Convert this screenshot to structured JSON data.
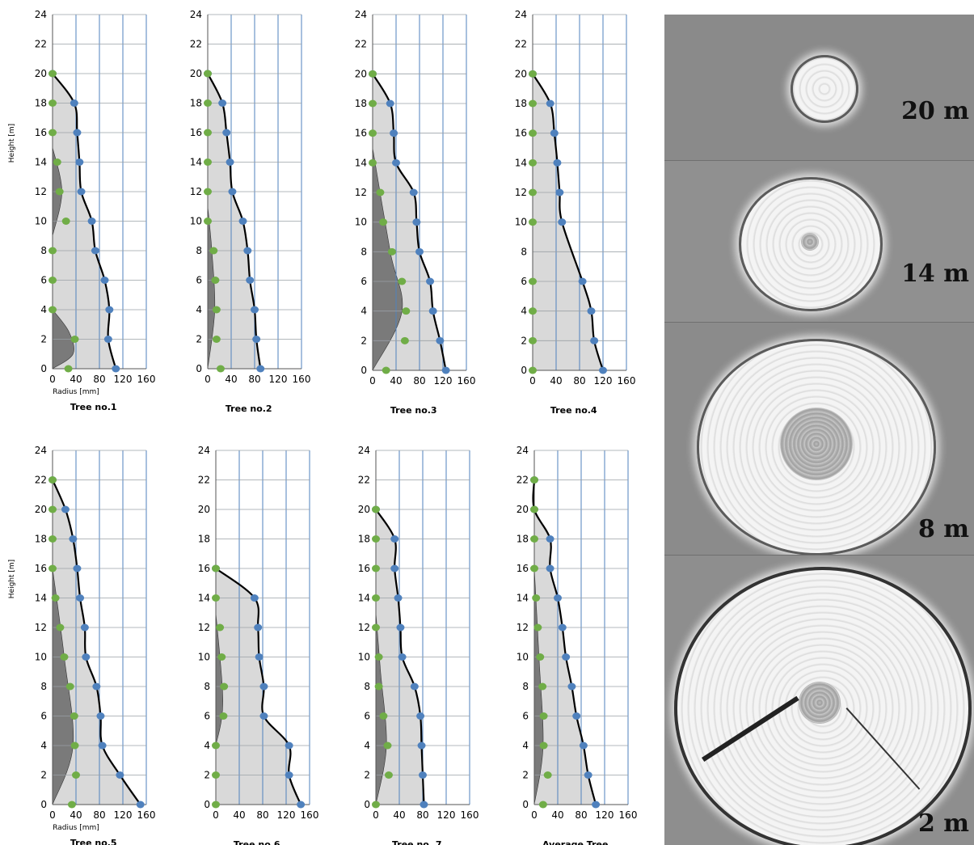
{
  "axis": {
    "ylabel": "Height [m]",
    "xlabel": "Radius [mm]",
    "yticks": [
      "0",
      "2",
      "4",
      "6",
      "8",
      "10",
      "12",
      "14",
      "16",
      "18",
      "20",
      "22",
      "24"
    ],
    "xticks": [
      "0",
      "40",
      "80",
      "120",
      "160"
    ]
  },
  "chart_data": [
    {
      "type": "line",
      "title": "Tree no.1",
      "xlabel": "Radius [mm]",
      "ylabel": "Height [m]",
      "xlim": [
        0,
        160
      ],
      "ylim": [
        0,
        24
      ],
      "series": [
        {
          "color": "#4f81bd",
          "points": [
            [
              108,
              0
            ],
            [
              95,
              2
            ],
            [
              97,
              4
            ],
            [
              89,
              6
            ],
            [
              73,
              8
            ],
            [
              67,
              10
            ],
            [
              49,
              12
            ],
            [
              46,
              14
            ],
            [
              42,
              16
            ],
            [
              37,
              18
            ],
            [
              0,
              20
            ]
          ]
        },
        {
          "color": "#70ad47",
          "points": [
            [
              27,
              0
            ],
            [
              38,
              2
            ],
            [
              0,
              4
            ],
            [
              0,
              6
            ],
            [
              0,
              8
            ],
            [
              23,
              10
            ],
            [
              12,
              12
            ],
            [
              8,
              14
            ],
            [
              0,
              16
            ],
            [
              0,
              18
            ],
            [
              0,
              20
            ]
          ]
        },
        {
          "color": "#7f7f7f",
          "points": [
            [
              0,
              0
            ],
            [
              35,
              1
            ],
            [
              28,
              2.5
            ],
            [
              0,
              4
            ]
          ]
        },
        {
          "color": "#7f7f7f",
          "points": [
            [
              0,
              9
            ],
            [
              16,
              12
            ],
            [
              0,
              15
            ]
          ]
        }
      ]
    },
    {
      "type": "line",
      "title": "Tree no.2",
      "xlabel": "",
      "ylabel": "",
      "xlim": [
        0,
        160
      ],
      "ylim": [
        0,
        24
      ],
      "series": [
        {
          "color": "#4f81bd",
          "points": [
            [
              90,
              0
            ],
            [
              83,
              2
            ],
            [
              80,
              4
            ],
            [
              72,
              6
            ],
            [
              68,
              8
            ],
            [
              60,
              10
            ],
            [
              42,
              12
            ],
            [
              38,
              14
            ],
            [
              32,
              16
            ],
            [
              25,
              18
            ],
            [
              0,
              20
            ]
          ]
        },
        {
          "color": "#70ad47",
          "points": [
            [
              22,
              0
            ],
            [
              15,
              2
            ],
            [
              15,
              4
            ],
            [
              13,
              6
            ],
            [
              10,
              8
            ],
            [
              0,
              10
            ],
            [
              0,
              12
            ],
            [
              0,
              14
            ],
            [
              0,
              16
            ],
            [
              0,
              18
            ],
            [
              0,
              20
            ]
          ]
        },
        {
          "color": "#7f7f7f",
          "points": [
            [
              0,
              0
            ],
            [
              12,
              4
            ],
            [
              7,
              8
            ],
            [
              0,
              11
            ]
          ]
        }
      ]
    },
    {
      "type": "line",
      "title": "Tree no.3",
      "xlabel": "",
      "ylabel": "",
      "xlim": [
        0,
        160
      ],
      "ylim": [
        0,
        24
      ],
      "series": [
        {
          "color": "#4f81bd",
          "points": [
            [
              125,
              0
            ],
            [
              115,
              2
            ],
            [
              103,
              4
            ],
            [
              98,
              6
            ],
            [
              80,
              8
            ],
            [
              75,
              10
            ],
            [
              70,
              12
            ],
            [
              40,
              14
            ],
            [
              36,
              16
            ],
            [
              30,
              18
            ],
            [
              0,
              20
            ]
          ]
        },
        {
          "color": "#70ad47",
          "points": [
            [
              23,
              0
            ],
            [
              55,
              2
            ],
            [
              57,
              4
            ],
            [
              50,
              6
            ],
            [
              33,
              8
            ],
            [
              18,
              10
            ],
            [
              13,
              12
            ],
            [
              0,
              14
            ],
            [
              0,
              16
            ],
            [
              0,
              18
            ],
            [
              0,
              20
            ]
          ]
        },
        {
          "color": "#7f7f7f",
          "points": [
            [
              0,
              0
            ],
            [
              50,
              4
            ],
            [
              30,
              8
            ],
            [
              0,
              15
            ]
          ]
        }
      ]
    },
    {
      "type": "line",
      "title": "Tree no.4",
      "xlabel": "",
      "ylabel": "",
      "xlim": [
        0,
        160
      ],
      "ylim": [
        0,
        24
      ],
      "series": [
        {
          "color": "#4f81bd",
          "points": [
            [
              120,
              0
            ],
            [
              105,
              2
            ],
            [
              100,
              4
            ],
            [
              85,
              6
            ],
            [
              50,
              10
            ],
            [
              46,
              12
            ],
            [
              42,
              14
            ],
            [
              37,
              16
            ],
            [
              30,
              18
            ],
            [
              0,
              20
            ]
          ]
        },
        {
          "color": "#70ad47",
          "points": [
            [
              0,
              0
            ],
            [
              0,
              2
            ],
            [
              0,
              4
            ],
            [
              0,
              6
            ],
            [
              0,
              10
            ],
            [
              0,
              12
            ],
            [
              0,
              14
            ],
            [
              0,
              16
            ],
            [
              0,
              18
            ],
            [
              0,
              20
            ]
          ]
        }
      ]
    },
    {
      "type": "line",
      "title": "Tree no.5",
      "xlabel": "Radius [mm]",
      "ylabel": "Height [m]",
      "xlim": [
        0,
        160
      ],
      "ylim": [
        0,
        24
      ],
      "series": [
        {
          "color": "#4f81bd",
          "points": [
            [
              150,
              0
            ],
            [
              115,
              2
            ],
            [
              85,
              4
            ],
            [
              82,
              6
            ],
            [
              75,
              8
            ],
            [
              57,
              10
            ],
            [
              55,
              12
            ],
            [
              47,
              14
            ],
            [
              42,
              16
            ],
            [
              35,
              18
            ],
            [
              22,
              20
            ],
            [
              0,
              22
            ]
          ]
        },
        {
          "color": "#70ad47",
          "points": [
            [
              33,
              0
            ],
            [
              40,
              2
            ],
            [
              38,
              4
            ],
            [
              37,
              6
            ],
            [
              30,
              8
            ],
            [
              20,
              10
            ],
            [
              13,
              12
            ],
            [
              5,
              14
            ],
            [
              0,
              16
            ],
            [
              0,
              18
            ],
            [
              0,
              20
            ],
            [
              0,
              22
            ]
          ]
        },
        {
          "color": "#7f7f7f",
          "points": [
            [
              0,
              0
            ],
            [
              35,
              4
            ],
            [
              20,
              10
            ],
            [
              0,
              16
            ]
          ]
        }
      ]
    },
    {
      "type": "line",
      "title": "Tree no.6",
      "xlabel": "",
      "ylabel": "",
      "xlim": [
        0,
        160
      ],
      "ylim": [
        0,
        24
      ],
      "series": [
        {
          "color": "#4f81bd",
          "points": [
            [
              145,
              0
            ],
            [
              125,
              2
            ],
            [
              125,
              4
            ],
            [
              82,
              6
            ],
            [
              82,
              8
            ],
            [
              74,
              10
            ],
            [
              72,
              12
            ],
            [
              66,
              14
            ],
            [
              0,
              16
            ]
          ]
        },
        {
          "color": "#70ad47",
          "points": [
            [
              0,
              0
            ],
            [
              0,
              2
            ],
            [
              0,
              4
            ],
            [
              13,
              6
            ],
            [
              14,
              8
            ],
            [
              10,
              10
            ],
            [
              7,
              12
            ],
            [
              0,
              14
            ],
            [
              0,
              16
            ]
          ]
        },
        {
          "color": "#7f7f7f",
          "points": [
            [
              0,
              4
            ],
            [
              12,
              7
            ],
            [
              0,
              13
            ]
          ]
        }
      ]
    },
    {
      "type": "line",
      "title": "Tree no. 7",
      "xlabel": "",
      "ylabel": "",
      "xlim": [
        0,
        160
      ],
      "ylim": [
        0,
        24
      ],
      "series": [
        {
          "color": "#4f81bd",
          "points": [
            [
              82,
              0
            ],
            [
              80,
              2
            ],
            [
              78,
              4
            ],
            [
              76,
              6
            ],
            [
              66,
              8
            ],
            [
              45,
              10
            ],
            [
              42,
              12
            ],
            [
              38,
              14
            ],
            [
              32,
              16
            ],
            [
              32,
              18
            ],
            [
              0,
              20
            ]
          ]
        },
        {
          "color": "#70ad47",
          "points": [
            [
              0,
              0
            ],
            [
              22,
              2
            ],
            [
              20,
              4
            ],
            [
              13,
              6
            ],
            [
              5,
              8
            ],
            [
              5,
              10
            ],
            [
              0,
              12
            ],
            [
              0,
              14
            ],
            [
              0,
              16
            ],
            [
              0,
              18
            ],
            [
              0,
              20
            ]
          ]
        },
        {
          "color": "#7f7f7f",
          "points": [
            [
              0,
              0
            ],
            [
              18,
              4
            ],
            [
              8,
              9
            ],
            [
              0,
              13
            ]
          ]
        }
      ]
    },
    {
      "type": "line",
      "title": "Average Tree",
      "xlabel": "",
      "ylabel": "",
      "xlim": [
        0,
        160
      ],
      "ylim": [
        0,
        24
      ],
      "series": [
        {
          "color": "#4f81bd",
          "points": [
            [
              105,
              0
            ],
            [
              92,
              2
            ],
            [
              84,
              4
            ],
            [
              72,
              6
            ],
            [
              64,
              8
            ],
            [
              54,
              10
            ],
            [
              48,
              12
            ],
            [
              40,
              14
            ],
            [
              27,
              16
            ],
            [
              27,
              18
            ],
            [
              0,
              20
            ],
            [
              0,
              22
            ]
          ]
        },
        {
          "color": "#70ad47",
          "points": [
            [
              15,
              0
            ],
            [
              23,
              2
            ],
            [
              16,
              4
            ],
            [
              16,
              6
            ],
            [
              14,
              8
            ],
            [
              10,
              10
            ],
            [
              6,
              12
            ],
            [
              3,
              14
            ],
            [
              0,
              16
            ],
            [
              0,
              18
            ],
            [
              0,
              20
            ],
            [
              0,
              22
            ]
          ]
        },
        {
          "color": "#7f7f7f",
          "points": [
            [
              0,
              0
            ],
            [
              15,
              4
            ],
            [
              8,
              10
            ],
            [
              0,
              16
            ]
          ]
        }
      ]
    }
  ],
  "photo": {
    "labels": [
      "20 m",
      "14 m",
      "8 m",
      "2 m"
    ]
  }
}
